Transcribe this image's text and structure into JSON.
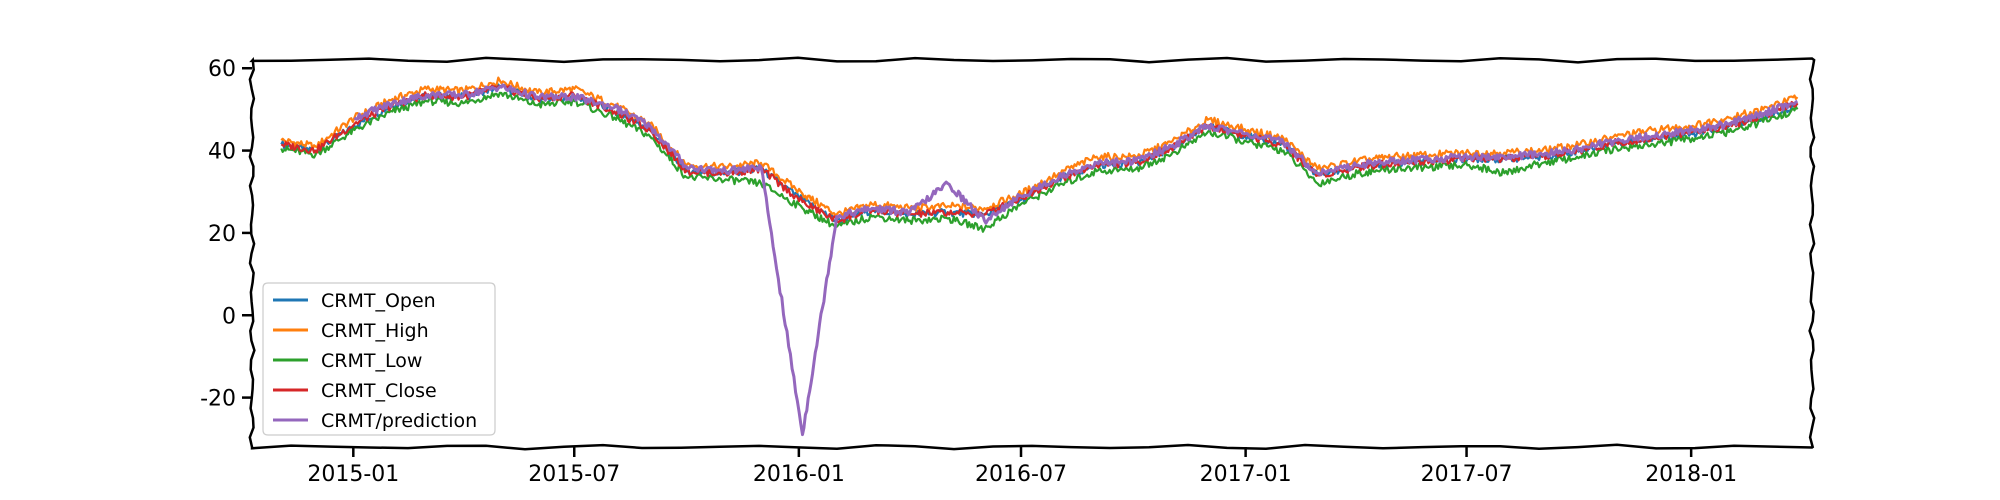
{
  "chart_data": {
    "type": "line",
    "title": "",
    "xlabel": "",
    "ylabel": "",
    "x_range": [
      "2014-10-10",
      "2018-04-10"
    ],
    "ylim": [
      -32,
      62
    ],
    "y_ticks": [
      -20,
      0,
      20,
      40,
      60
    ],
    "x_ticks": [
      {
        "date": "2015-01-01",
        "label": "2015-01"
      },
      {
        "date": "2015-07-01",
        "label": "2015-07"
      },
      {
        "date": "2016-01-01",
        "label": "2016-01"
      },
      {
        "date": "2016-07-01",
        "label": "2016-07"
      },
      {
        "date": "2017-01-01",
        "label": "2017-01"
      },
      {
        "date": "2017-07-01",
        "label": "2017-07"
      },
      {
        "date": "2018-01-01",
        "label": "2018-01"
      }
    ],
    "grid": false,
    "legend_position": "lower-left",
    "x": [
      "2014-11-03",
      "2014-12-01",
      "2015-01-02",
      "2015-02-02",
      "2015-03-02",
      "2015-04-01",
      "2015-05-01",
      "2015-06-01",
      "2015-07-01",
      "2015-08-03",
      "2015-09-01",
      "2015-10-01",
      "2015-11-02",
      "2015-12-01",
      "2016-01-04",
      "2016-02-01",
      "2016-03-01",
      "2016-04-01",
      "2016-05-02",
      "2016-06-01",
      "2016-07-01",
      "2016-08-01",
      "2016-09-01",
      "2016-10-03",
      "2016-11-01",
      "2016-12-01",
      "2017-01-03",
      "2017-02-01",
      "2017-03-01",
      "2017-04-03",
      "2017-05-01",
      "2017-06-01",
      "2017-07-03",
      "2017-08-01",
      "2017-09-01",
      "2017-10-02",
      "2017-11-01",
      "2017-12-01",
      "2018-01-02",
      "2018-02-01",
      "2018-03-01",
      "2018-03-29"
    ],
    "series": [
      {
        "name": "CRMT_Open",
        "color": "#1f77b4",
        "values": [
          41.5,
          40.0,
          46.0,
          51.0,
          53.5,
          53.0,
          55.5,
          52.5,
          53.0,
          49.5,
          45.0,
          35.0,
          34.5,
          35.5,
          28.0,
          23.0,
          25.5,
          24.5,
          25.0,
          24.5,
          28.0,
          33.0,
          36.5,
          37.0,
          40.5,
          46.0,
          43.5,
          41.5,
          34.0,
          36.0,
          37.0,
          37.5,
          38.0,
          38.0,
          38.5,
          40.0,
          42.0,
          43.0,
          44.0,
          46.0,
          48.0,
          51.0
        ]
      },
      {
        "name": "CRMT_High",
        "color": "#ff7f0e",
        "values": [
          42.5,
          41.0,
          48.0,
          52.5,
          55.0,
          54.5,
          57.0,
          54.0,
          55.0,
          51.0,
          46.5,
          36.5,
          36.0,
          37.0,
          29.5,
          24.5,
          27.0,
          26.0,
          26.5,
          26.0,
          29.5,
          34.5,
          38.5,
          38.5,
          42.0,
          47.5,
          45.0,
          43.0,
          35.5,
          37.5,
          38.5,
          39.0,
          39.5,
          39.5,
          40.0,
          41.5,
          43.5,
          45.0,
          46.0,
          48.0,
          50.0,
          53.0
        ]
      },
      {
        "name": "CRMT_Low",
        "color": "#2ca02c",
        "values": [
          40.5,
          39.0,
          45.0,
          49.5,
          52.0,
          51.5,
          54.0,
          51.0,
          52.0,
          48.0,
          43.5,
          33.5,
          33.0,
          32.0,
          26.0,
          21.5,
          24.0,
          23.0,
          23.5,
          21.0,
          27.0,
          31.5,
          35.0,
          35.5,
          39.0,
          44.5,
          42.0,
          40.0,
          32.0,
          34.5,
          35.5,
          36.0,
          36.5,
          34.5,
          37.0,
          38.5,
          40.5,
          41.5,
          43.0,
          44.5,
          47.0,
          50.0
        ]
      },
      {
        "name": "CRMT_Close",
        "color": "#d62728",
        "values": [
          41.5,
          40.0,
          46.5,
          51.0,
          53.5,
          53.0,
          55.5,
          52.5,
          53.5,
          49.5,
          45.0,
          35.0,
          34.5,
          35.5,
          27.5,
          23.0,
          25.5,
          24.5,
          25.0,
          24.5,
          28.5,
          33.0,
          36.5,
          37.0,
          40.5,
          46.0,
          43.5,
          41.5,
          34.0,
          36.0,
          37.0,
          37.5,
          38.0,
          38.0,
          38.5,
          40.0,
          42.0,
          43.0,
          44.5,
          46.0,
          48.5,
          51.5
        ]
      },
      {
        "name": "CRMT/prediction",
        "color": "#9467bd",
        "values": [
          null,
          null,
          48.0,
          51.5,
          53.5,
          53.5,
          55.5,
          53.0,
          53.0,
          50.5,
          46.0,
          36.0,
          35.0,
          36.0,
          -29.0,
          24.0,
          26.0,
          25.0,
          32.0,
          23.0,
          29.0,
          33.5,
          37.0,
          37.5,
          41.0,
          46.0,
          44.0,
          42.0,
          34.5,
          36.5,
          37.5,
          38.0,
          38.5,
          38.5,
          39.0,
          40.5,
          42.5,
          43.5,
          45.0,
          46.5,
          49.0,
          52.0
        ]
      }
    ]
  }
}
